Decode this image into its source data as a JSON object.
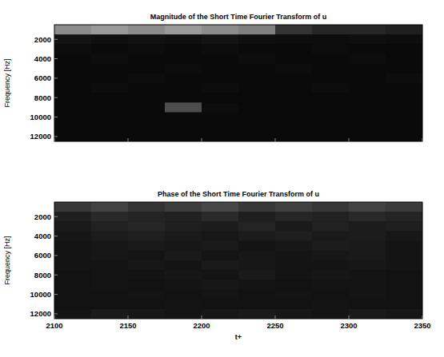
{
  "chart_data": [
    {
      "type": "heatmap",
      "title": "Magnitude of the Short Time Fourier Transform of u",
      "y_label": "Frequency [Hz]",
      "xlim": [
        2100,
        2350
      ],
      "xticks": [
        2100,
        2150,
        2200,
        2250,
        2300,
        2350
      ],
      "ylim": [
        12500,
        500
      ],
      "yticks": [
        2000,
        4000,
        6000,
        8000,
        10000,
        12000
      ],
      "tick_labels": "y",
      "color_range": [
        0,
        1
      ],
      "cells": [
        [
          0.55,
          0.6,
          0.55,
          0.6,
          0.55,
          0.5,
          0.2,
          0.15,
          0.15,
          0.12
        ],
        [
          0.08,
          0.06,
          0.07,
          0.06,
          0.08,
          0.06,
          0.05,
          0.05,
          0.06,
          0.05
        ],
        [
          0.05,
          0.04,
          0.05,
          0.04,
          0.05,
          0.04,
          0.04,
          0.05,
          0.04,
          0.04
        ],
        [
          0.04,
          0.05,
          0.04,
          0.04,
          0.04,
          0.05,
          0.04,
          0.04,
          0.05,
          0.04
        ],
        [
          0.04,
          0.04,
          0.04,
          0.05,
          0.04,
          0.04,
          0.05,
          0.04,
          0.04,
          0.04
        ],
        [
          0.04,
          0.04,
          0.05,
          0.04,
          0.04,
          0.04,
          0.04,
          0.04,
          0.04,
          0.05
        ],
        [
          0.04,
          0.05,
          0.04,
          0.04,
          0.05,
          0.04,
          0.04,
          0.05,
          0.04,
          0.04
        ],
        [
          0.04,
          0.04,
          0.04,
          0.04,
          0.04,
          0.04,
          0.04,
          0.04,
          0.04,
          0.04
        ],
        [
          0.04,
          0.04,
          0.04,
          0.3,
          0.05,
          0.04,
          0.04,
          0.04,
          0.04,
          0.04
        ],
        [
          0.04,
          0.04,
          0.04,
          0.04,
          0.04,
          0.04,
          0.04,
          0.04,
          0.04,
          0.04
        ],
        [
          0.04,
          0.04,
          0.04,
          0.04,
          0.04,
          0.04,
          0.04,
          0.04,
          0.04,
          0.04
        ],
        [
          0.04,
          0.04,
          0.04,
          0.04,
          0.04,
          0.04,
          0.04,
          0.04,
          0.04,
          0.04
        ]
      ]
    },
    {
      "type": "heatmap",
      "title": "Phase of the Short Time Fourier Transform of u",
      "x_label": "t+",
      "y_label": "Frequency [Hz]",
      "xlim": [
        2100,
        2350
      ],
      "xticks": [
        2100,
        2150,
        2200,
        2250,
        2300,
        2350
      ],
      "ylim": [
        12500,
        500
      ],
      "yticks": [
        2000,
        4000,
        6000,
        8000,
        10000,
        12000
      ],
      "color_range": [
        0,
        1
      ],
      "cells": [
        [
          0.22,
          0.26,
          0.2,
          0.24,
          0.28,
          0.22,
          0.25,
          0.21,
          0.26,
          0.23
        ],
        [
          0.12,
          0.16,
          0.14,
          0.13,
          0.17,
          0.12,
          0.15,
          0.13,
          0.16,
          0.14
        ],
        [
          0.1,
          0.13,
          0.15,
          0.12,
          0.11,
          0.14,
          0.1,
          0.13,
          0.11,
          0.12
        ],
        [
          0.09,
          0.11,
          0.12,
          0.1,
          0.09,
          0.11,
          0.12,
          0.1,
          0.11,
          0.09
        ],
        [
          0.08,
          0.09,
          0.1,
          0.09,
          0.1,
          0.08,
          0.09,
          0.11,
          0.1,
          0.08
        ],
        [
          0.08,
          0.09,
          0.08,
          0.1,
          0.08,
          0.09,
          0.08,
          0.09,
          0.1,
          0.08
        ],
        [
          0.08,
          0.08,
          0.09,
          0.08,
          0.1,
          0.09,
          0.08,
          0.08,
          0.09,
          0.08
        ],
        [
          0.07,
          0.08,
          0.08,
          0.09,
          0.08,
          0.1,
          0.08,
          0.09,
          0.08,
          0.07
        ],
        [
          0.07,
          0.08,
          0.07,
          0.08,
          0.09,
          0.08,
          0.07,
          0.08,
          0.08,
          0.07
        ],
        [
          0.07,
          0.07,
          0.08,
          0.07,
          0.08,
          0.07,
          0.08,
          0.07,
          0.08,
          0.07
        ],
        [
          0.07,
          0.07,
          0.07,
          0.08,
          0.07,
          0.07,
          0.07,
          0.08,
          0.07,
          0.07
        ],
        [
          0.08,
          0.1,
          0.09,
          0.08,
          0.09,
          0.1,
          0.09,
          0.08,
          0.1,
          0.09
        ]
      ]
    }
  ]
}
